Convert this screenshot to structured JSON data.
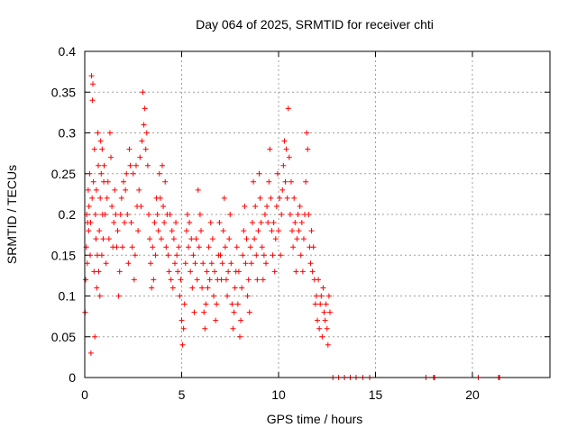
{
  "chart_data": {
    "type": "scatter",
    "title": "Day 064 of 2025, SRMTID for receiver chti",
    "xlabel": "GPS time / hours",
    "ylabel": "SRMTID / TECUs",
    "xlim": [
      0,
      24
    ],
    "ylim": [
      0,
      0.4
    ],
    "xticks": [
      0,
      5,
      10,
      15,
      20
    ],
    "yticks": [
      0,
      0.05,
      0.1,
      0.15,
      0.2,
      0.25,
      0.3,
      0.35,
      0.4
    ],
    "grid": true,
    "marker": "plus",
    "series": [
      {
        "color": "#ff0000",
        "x": [
          0.02,
          0.05,
          0.08,
          0.1,
          0.13,
          0.15,
          0.18,
          0.2,
          0.22,
          0.25,
          0.28,
          0.3,
          0.32,
          0.35,
          0.38,
          0.4,
          0.42,
          0.45,
          0.48,
          0.5,
          0.52,
          0.55,
          0.58,
          0.6,
          0.62,
          0.65,
          0.68,
          0.7,
          0.72,
          0.75,
          0.78,
          0.8,
          0.82,
          0.85,
          0.88,
          0.9,
          0.92,
          0.95,
          0.98,
          1.0,
          1.05,
          1.1,
          1.15,
          1.2,
          1.25,
          1.3,
          1.35,
          1.4,
          1.45,
          1.5,
          1.55,
          1.6,
          1.65,
          1.7,
          1.75,
          1.8,
          1.85,
          1.9,
          1.95,
          2.0,
          2.05,
          2.1,
          2.15,
          2.2,
          2.25,
          2.3,
          2.35,
          2.4,
          2.45,
          2.5,
          2.55,
          2.6,
          2.65,
          2.7,
          2.75,
          2.8,
          2.85,
          2.9,
          2.95,
          3.0,
          3.05,
          3.1,
          3.15,
          3.2,
          3.25,
          3.3,
          3.35,
          3.4,
          3.45,
          3.5,
          3.55,
          3.6,
          3.65,
          3.7,
          3.75,
          3.8,
          3.85,
          3.9,
          3.95,
          4.0,
          4.05,
          4.1,
          4.15,
          4.2,
          4.25,
          4.3,
          4.35,
          4.4,
          4.45,
          4.5,
          4.55,
          4.6,
          4.65,
          4.7,
          4.75,
          4.8,
          4.85,
          4.9,
          4.95,
          5.0,
          5.05,
          5.1,
          5.15,
          5.2,
          5.25,
          5.3,
          5.35,
          5.4,
          5.45,
          5.5,
          5.55,
          5.6,
          5.65,
          5.7,
          5.75,
          5.8,
          5.85,
          5.9,
          5.95,
          6.0,
          6.05,
          6.1,
          6.15,
          6.2,
          6.25,
          6.3,
          6.35,
          6.4,
          6.45,
          6.5,
          6.55,
          6.6,
          6.65,
          6.7,
          6.75,
          6.8,
          6.85,
          6.9,
          6.95,
          7.0,
          7.05,
          7.1,
          7.15,
          7.2,
          7.25,
          7.3,
          7.35,
          7.4,
          7.45,
          7.5,
          7.55,
          7.6,
          7.65,
          7.7,
          7.75,
          7.8,
          7.85,
          7.9,
          7.95,
          8.0,
          8.05,
          8.1,
          8.15,
          8.2,
          8.25,
          8.3,
          8.35,
          8.4,
          8.45,
          8.5,
          8.55,
          8.6,
          8.65,
          8.7,
          8.75,
          8.8,
          8.85,
          8.9,
          8.95,
          9.0,
          9.05,
          9.1,
          9.15,
          9.2,
          9.25,
          9.3,
          9.35,
          9.4,
          9.45,
          9.5,
          9.55,
          9.6,
          9.65,
          9.7,
          9.75,
          9.8,
          9.85,
          9.9,
          9.95,
          10.0,
          10.05,
          10.1,
          10.15,
          10.2,
          10.25,
          10.3,
          10.35,
          10.4,
          10.45,
          10.5,
          10.55,
          10.6,
          10.65,
          10.7,
          10.75,
          10.8,
          10.85,
          10.9,
          10.95,
          11.0,
          11.05,
          11.1,
          11.15,
          11.2,
          11.25,
          11.3,
          11.35,
          11.4,
          11.45,
          11.5,
          11.55,
          11.6,
          11.65,
          11.7,
          11.75,
          11.8,
          11.85,
          11.9,
          11.95,
          12.0,
          12.05,
          12.1,
          12.15,
          12.2,
          12.25,
          12.3,
          12.35,
          12.4,
          12.45,
          12.5,
          12.55,
          12.6,
          12.65,
          12.8,
          13.1,
          13.4,
          13.7,
          14.0,
          14.35,
          14.7,
          17.6,
          18.0,
          18.05,
          20.3,
          21.35,
          21.4
        ],
        "y": [
          0.08,
          0.12,
          0.16,
          0.2,
          0.14,
          0.19,
          0.23,
          0.18,
          0.21,
          0.25,
          0.15,
          0.19,
          0.03,
          0.37,
          0.22,
          0.34,
          0.36,
          0.24,
          0.13,
          0.28,
          0.05,
          0.2,
          0.17,
          0.23,
          0.11,
          0.15,
          0.3,
          0.26,
          0.13,
          0.18,
          0.1,
          0.22,
          0.29,
          0.25,
          0.15,
          0.28,
          0.2,
          0.17,
          0.24,
          0.26,
          0.2,
          0.14,
          0.22,
          0.24,
          0.17,
          0.3,
          0.27,
          0.21,
          0.16,
          0.19,
          0.23,
          0.2,
          0.16,
          0.18,
          0.1,
          0.13,
          0.2,
          0.22,
          0.16,
          0.24,
          0.19,
          0.23,
          0.25,
          0.2,
          0.14,
          0.28,
          0.26,
          0.19,
          0.16,
          0.25,
          0.12,
          0.15,
          0.26,
          0.21,
          0.18,
          0.23,
          0.27,
          0.21,
          0.29,
          0.35,
          0.31,
          0.33,
          0.28,
          0.3,
          0.26,
          0.2,
          0.17,
          0.14,
          0.11,
          0.16,
          0.12,
          0.19,
          0.15,
          0.22,
          0.2,
          0.18,
          0.25,
          0.22,
          0.17,
          0.26,
          0.21,
          0.19,
          0.24,
          0.16,
          0.2,
          0.15,
          0.13,
          0.2,
          0.12,
          0.18,
          0.11,
          0.17,
          0.14,
          0.19,
          0.15,
          0.13,
          0.16,
          0.1,
          0.12,
          0.07,
          0.04,
          0.06,
          0.09,
          0.14,
          0.18,
          0.2,
          0.16,
          0.19,
          0.13,
          0.17,
          0.11,
          0.15,
          0.08,
          0.14,
          0.17,
          0.12,
          0.23,
          0.16,
          0.2,
          0.18,
          0.11,
          0.14,
          0.08,
          0.06,
          0.09,
          0.13,
          0.11,
          0.16,
          0.12,
          0.19,
          0.14,
          0.17,
          0.1,
          0.13,
          0.07,
          0.09,
          0.12,
          0.15,
          0.19,
          0.15,
          0.12,
          0.14,
          0.18,
          0.22,
          0.16,
          0.12,
          0.1,
          0.13,
          0.17,
          0.2,
          0.14,
          0.09,
          0.06,
          0.08,
          0.11,
          0.13,
          0.16,
          0.09,
          0.13,
          0.05,
          0.07,
          0.11,
          0.15,
          0.18,
          0.21,
          0.14,
          0.17,
          0.1,
          0.12,
          0.08,
          0.16,
          0.14,
          0.19,
          0.24,
          0.17,
          0.21,
          0.15,
          0.12,
          0.18,
          0.25,
          0.22,
          0.19,
          0.16,
          0.12,
          0.15,
          0.2,
          0.14,
          0.21,
          0.19,
          0.24,
          0.28,
          0.22,
          0.18,
          0.15,
          0.19,
          0.13,
          0.17,
          0.21,
          0.25,
          0.18,
          0.22,
          0.15,
          0.2,
          0.23,
          0.26,
          0.29,
          0.24,
          0.28,
          0.22,
          0.33,
          0.27,
          0.2,
          0.24,
          0.18,
          0.16,
          0.22,
          0.19,
          0.13,
          0.17,
          0.2,
          0.18,
          0.21,
          0.15,
          0.19,
          0.13,
          0.17,
          0.2,
          0.24,
          0.3,
          0.28,
          0.2,
          0.16,
          0.14,
          0.18,
          0.13,
          0.16,
          0.12,
          0.09,
          0.1,
          0.07,
          0.12,
          0.06,
          0.09,
          0.1,
          0.05,
          0.11,
          0.08,
          0.07,
          0.09,
          0.06,
          0.04,
          0.1,
          0.08,
          0.0,
          0.0,
          0.0,
          0.0,
          0.0,
          0.0,
          0.0,
          0.0,
          0.0,
          0.0,
          0.0,
          0.0,
          0.0
        ]
      }
    ]
  }
}
